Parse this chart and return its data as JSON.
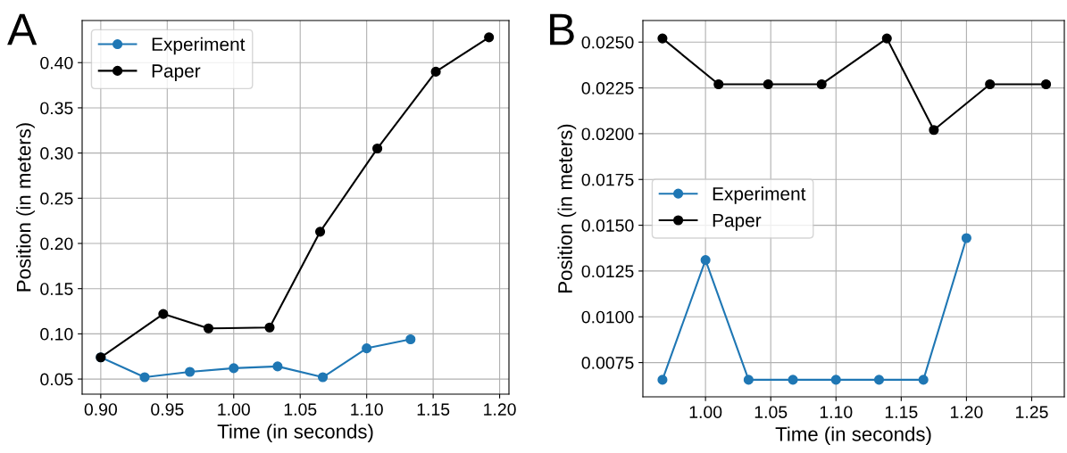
{
  "chart_data": [
    {
      "type": "line",
      "xlabel": "Time (in seconds)",
      "ylabel": "Position (in meters)",
      "annotations": [
        "A"
      ],
      "legend": "upper left",
      "grid": true,
      "marker": "circle",
      "line_style": "solid",
      "xlim": [
        0.886,
        1.207
      ],
      "ylim": [
        0.0333,
        0.4466
      ],
      "xticks": [
        {
          "value": 0.9,
          "label": "0.90"
        },
        {
          "value": 0.95,
          "label": "0.95"
        },
        {
          "value": 1.0,
          "label": "1.00"
        },
        {
          "value": 1.05,
          "label": "1.05"
        },
        {
          "value": 1.1,
          "label": "1.10"
        },
        {
          "value": 1.15,
          "label": "1.15"
        },
        {
          "value": 1.2,
          "label": "1.20"
        }
      ],
      "yticks": [
        {
          "value": 0.05,
          "label": "0.05"
        },
        {
          "value": 0.1,
          "label": "0.10"
        },
        {
          "value": 0.15,
          "label": "0.15"
        },
        {
          "value": 0.2,
          "label": "0.20"
        },
        {
          "value": 0.25,
          "label": "0.25"
        },
        {
          "value": 0.3,
          "label": "0.30"
        },
        {
          "value": 0.35,
          "label": "0.35"
        },
        {
          "value": 0.4,
          "label": "0.40"
        }
      ],
      "series": [
        {
          "name": "Experiment",
          "color": "#1f77b4",
          "x": [
            0.9,
            0.933,
            0.967,
            1.0,
            1.033,
            1.067,
            1.1,
            1.133
          ],
          "values": [
            0.074,
            0.052,
            0.058,
            0.062,
            0.064,
            0.052,
            0.084,
            0.094
          ]
        },
        {
          "name": "Paper",
          "color": "#000000",
          "x": [
            0.9,
            0.947,
            0.981,
            1.027,
            1.065,
            1.108,
            1.152,
            1.192
          ],
          "values": [
            0.074,
            0.122,
            0.106,
            0.107,
            0.213,
            0.305,
            0.39,
            0.428
          ]
        }
      ]
    },
    {
      "type": "line",
      "xlabel": "Time (in seconds)",
      "ylabel": "Position (in meters)",
      "annotations": [
        "B"
      ],
      "legend": "center left",
      "grid": true,
      "marker": "circle",
      "line_style": "solid",
      "xlim": [
        0.952,
        1.275
      ],
      "ylim": [
        0.00563,
        0.02618
      ],
      "xticks": [
        {
          "value": 1.0,
          "label": "1.00"
        },
        {
          "value": 1.05,
          "label": "1.05"
        },
        {
          "value": 1.1,
          "label": "1.10"
        },
        {
          "value": 1.15,
          "label": "1.15"
        },
        {
          "value": 1.2,
          "label": "1.20"
        },
        {
          "value": 1.25,
          "label": "1.25"
        }
      ],
      "yticks": [
        {
          "value": 0.0075,
          "label": "0.0075"
        },
        {
          "value": 0.01,
          "label": "0.0100"
        },
        {
          "value": 0.0125,
          "label": "0.0125"
        },
        {
          "value": 0.015,
          "label": "0.0150"
        },
        {
          "value": 0.0175,
          "label": "0.0175"
        },
        {
          "value": 0.02,
          "label": "0.0200"
        },
        {
          "value": 0.0225,
          "label": "0.0225"
        },
        {
          "value": 0.025,
          "label": "0.0250"
        }
      ],
      "series": [
        {
          "name": "Experiment",
          "color": "#1f77b4",
          "x": [
            0.967,
            1.0,
            1.033,
            1.067,
            1.1,
            1.133,
            1.167,
            1.2
          ],
          "values": [
            0.00656,
            0.0131,
            0.00656,
            0.00656,
            0.00656,
            0.00656,
            0.00656,
            0.0143
          ]
        },
        {
          "name": "Paper",
          "color": "#000000",
          "x": [
            0.967,
            1.01,
            1.048,
            1.089,
            1.139,
            1.175,
            1.218,
            1.261
          ],
          "values": [
            0.0252,
            0.0227,
            0.0227,
            0.0227,
            0.0252,
            0.0202,
            0.0227,
            0.0227
          ]
        }
      ]
    }
  ]
}
